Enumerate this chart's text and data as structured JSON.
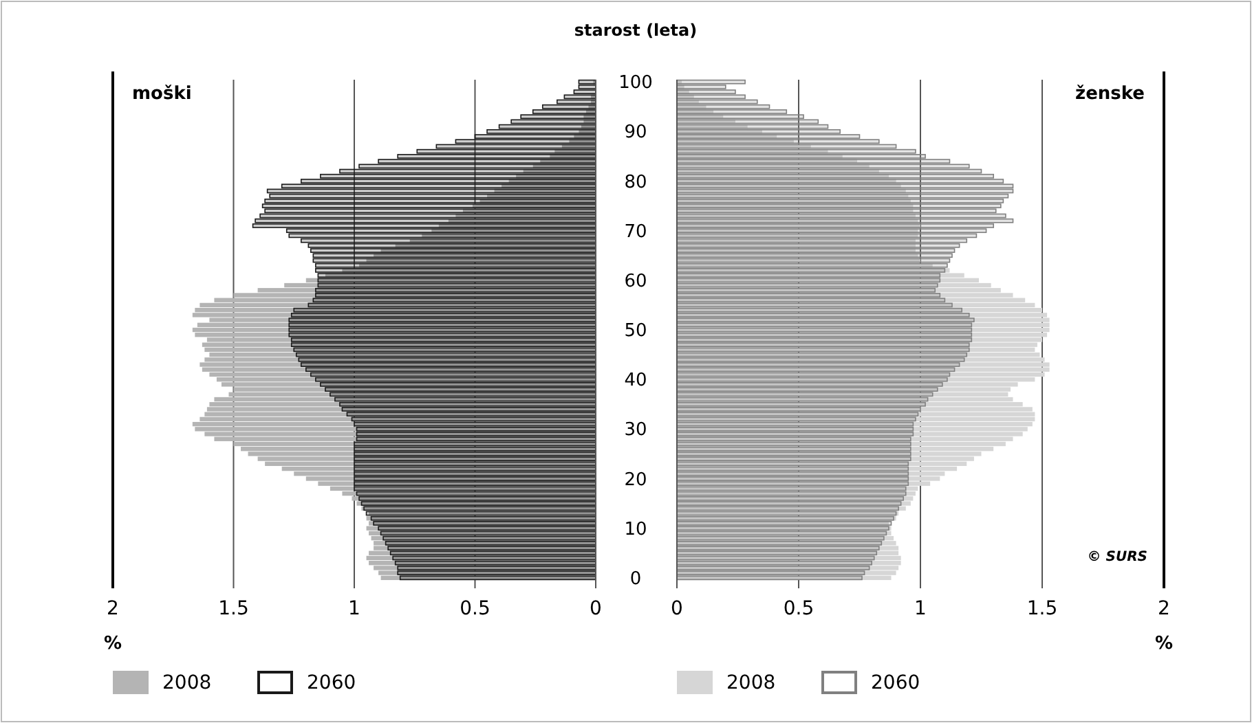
{
  "chart_data": [
    {
      "type": "bar",
      "orientation": "horizontal",
      "title": "moški",
      "ylabel": "starost (leta)",
      "xlabel": "%",
      "xlim": [
        2,
        0
      ],
      "xticks": [
        2,
        1.5,
        1,
        0.5,
        0
      ],
      "grid": "x",
      "legend": "bottom",
      "categories": [
        "100",
        null,
        null,
        null,
        null,
        null,
        null,
        null,
        null,
        null,
        "90",
        null,
        null,
        null,
        null,
        null,
        null,
        null,
        null,
        null,
        "80",
        null,
        null,
        null,
        null,
        null,
        null,
        null,
        null,
        null,
        "70",
        null,
        null,
        null,
        null,
        null,
        null,
        null,
        null,
        null,
        "60",
        null,
        null,
        null,
        null,
        null,
        null,
        null,
        null,
        null,
        "50",
        null,
        null,
        null,
        null,
        null,
        null,
        null,
        null,
        null,
        "40",
        null,
        null,
        null,
        null,
        null,
        null,
        null,
        null,
        null,
        "30",
        null,
        null,
        null,
        null,
        null,
        null,
        null,
        null,
        null,
        "20",
        null,
        null,
        null,
        null,
        null,
        null,
        null,
        null,
        null,
        "10",
        null,
        null,
        null,
        null,
        null,
        null,
        null,
        null,
        null,
        "0"
      ],
      "series": [
        {
          "name": "2008",
          "color": "#b4b4b4",
          "values": [
            0.01,
            null,
            null,
            0.02,
            0.02,
            0.03,
            0.04,
            0.05,
            0.05,
            0.06,
            0.07,
            0.09,
            0.11,
            0.14,
            0.17,
            0.19,
            0.23,
            0.26,
            0.3,
            0.33,
            0.36,
            0.39,
            0.42,
            0.45,
            0.48,
            0.51,
            0.55,
            0.58,
            0.61,
            0.65,
            0.68,
            0.72,
            0.77,
            0.83,
            0.89,
            0.92,
            0.95,
            0.98,
            1.05,
            1.12,
            1.2,
            1.29,
            1.4,
            1.5,
            1.58,
            1.64,
            1.66,
            1.67,
            1.6,
            1.65,
            1.67,
            1.66,
            1.61,
            1.63,
            1.62,
            1.6,
            1.62,
            1.64,
            1.63,
            1.6,
            1.57,
            1.55,
            1.5,
            1.52,
            1.58,
            1.6,
            1.61,
            1.62,
            1.64,
            1.67,
            1.66,
            1.62,
            1.58,
            1.5,
            1.47,
            1.44,
            1.4,
            1.37,
            1.3,
            1.25,
            1.2,
            1.15,
            1.1,
            1.05,
            1.01,
            0.99,
            0.97,
            0.94,
            0.95,
            0.94,
            0.95,
            0.94,
            0.93,
            0.92,
            0.92,
            0.94,
            0.95,
            0.94,
            0.92,
            0.9,
            0.89
          ]
        },
        {
          "name": "2060",
          "color": "#1a1a1a",
          "values": [
            0.07,
            0.07,
            0.09,
            0.13,
            0.16,
            0.22,
            0.26,
            0.31,
            0.35,
            0.4,
            0.45,
            0.5,
            0.58,
            0.66,
            0.74,
            0.82,
            0.9,
            0.98,
            1.06,
            1.14,
            1.22,
            1.3,
            1.36,
            1.35,
            1.37,
            1.38,
            1.37,
            1.39,
            1.41,
            1.42,
            1.28,
            1.27,
            1.22,
            1.19,
            1.18,
            1.17,
            1.17,
            1.16,
            1.16,
            1.15,
            1.15,
            1.15,
            1.16,
            1.16,
            1.17,
            1.19,
            1.25,
            1.26,
            1.27,
            1.27,
            1.27,
            1.27,
            1.26,
            1.26,
            1.25,
            1.24,
            1.23,
            1.22,
            1.2,
            1.18,
            1.16,
            1.14,
            1.12,
            1.1,
            1.08,
            1.06,
            1.05,
            1.03,
            1.01,
            1.0,
            0.99,
            0.99,
            0.99,
            1.0,
            1.0,
            1.0,
            1.0,
            1.0,
            1.0,
            1.0,
            1.0,
            1.0,
            1.0,
            0.99,
            0.98,
            0.97,
            0.96,
            0.95,
            0.93,
            0.92,
            0.9,
            0.89,
            0.88,
            0.87,
            0.86,
            0.85,
            0.84,
            0.83,
            0.82,
            0.82,
            0.81
          ]
        }
      ]
    },
    {
      "type": "bar",
      "orientation": "horizontal",
      "title": "ženske",
      "xlabel": "%",
      "xlim": [
        0,
        2
      ],
      "xticks": [
        0,
        0.5,
        1,
        1.5,
        2
      ],
      "grid": "x",
      "legend": "bottom",
      "tick_labels": "x",
      "annotations": [
        "© SURS"
      ],
      "categories": [
        "100",
        null,
        null,
        null,
        null,
        null,
        null,
        null,
        null,
        null,
        "90",
        null,
        null,
        null,
        null,
        null,
        null,
        null,
        null,
        null,
        "80",
        null,
        null,
        null,
        null,
        null,
        null,
        null,
        null,
        null,
        "70",
        null,
        null,
        null,
        null,
        null,
        null,
        null,
        null,
        null,
        "60",
        null,
        null,
        null,
        null,
        null,
        null,
        null,
        null,
        null,
        "50",
        null,
        null,
        null,
        null,
        null,
        null,
        null,
        null,
        null,
        "40",
        null,
        null,
        null,
        null,
        null,
        null,
        null,
        null,
        null,
        "30",
        null,
        null,
        null,
        null,
        null,
        null,
        null,
        null,
        null,
        "20",
        null,
        null,
        null,
        null,
        null,
        null,
        null,
        null,
        null,
        "10",
        null,
        null,
        null,
        null,
        null,
        null,
        null,
        null,
        null,
        "0"
      ],
      "series": [
        {
          "name": "2008",
          "color": "#d6d6d6",
          "values": [
            0.02,
            0.03,
            0.05,
            0.07,
            0.09,
            0.12,
            0.15,
            0.19,
            0.24,
            0.29,
            0.35,
            0.41,
            0.48,
            0.55,
            0.62,
            0.68,
            0.74,
            0.79,
            0.83,
            0.87,
            0.9,
            0.92,
            0.94,
            0.95,
            0.96,
            0.97,
            0.97,
            0.98,
            0.99,
            1.0,
            0.99,
            0.99,
            0.98,
            0.98,
            0.98,
            0.99,
            1.0,
            1.05,
            1.12,
            1.18,
            1.24,
            1.29,
            1.33,
            1.38,
            1.43,
            1.47,
            1.5,
            1.52,
            1.53,
            1.53,
            1.53,
            1.52,
            1.5,
            1.48,
            1.47,
            1.49,
            1.51,
            1.53,
            1.53,
            1.51,
            1.47,
            1.4,
            1.37,
            1.36,
            1.38,
            1.42,
            1.46,
            1.47,
            1.47,
            1.46,
            1.44,
            1.42,
            1.38,
            1.35,
            1.3,
            1.25,
            1.22,
            1.19,
            1.15,
            1.1,
            1.08,
            1.04,
            0.99,
            0.98,
            0.97,
            0.96,
            0.94,
            0.91,
            0.9,
            0.87,
            0.88,
            0.88,
            0.89,
            0.9,
            0.91,
            0.91,
            0.92,
            0.92,
            0.91,
            0.9,
            0.88
          ]
        },
        {
          "name": "2060",
          "color": "#808080",
          "values": [
            0.28,
            0.2,
            0.24,
            0.28,
            0.33,
            0.38,
            0.45,
            0.52,
            0.58,
            0.62,
            0.67,
            0.75,
            0.83,
            0.9,
            0.98,
            1.02,
            1.12,
            1.2,
            1.25,
            1.3,
            1.34,
            1.38,
            1.38,
            1.36,
            1.34,
            1.33,
            1.31,
            1.35,
            1.38,
            1.3,
            1.27,
            1.23,
            1.19,
            1.16,
            1.14,
            1.13,
            1.12,
            1.11,
            1.1,
            1.08,
            1.08,
            1.07,
            1.06,
            1.08,
            1.1,
            1.13,
            1.17,
            1.2,
            1.22,
            1.21,
            1.21,
            1.21,
            1.21,
            1.2,
            1.2,
            1.19,
            1.18,
            1.16,
            1.14,
            1.12,
            1.11,
            1.09,
            1.07,
            1.05,
            1.03,
            1.02,
            1.0,
            0.99,
            0.98,
            0.97,
            0.97,
            0.97,
            0.96,
            0.96,
            0.96,
            0.96,
            0.96,
            0.95,
            0.95,
            0.95,
            0.95,
            0.95,
            0.94,
            0.94,
            0.93,
            0.92,
            0.91,
            0.9,
            0.89,
            0.88,
            0.87,
            0.86,
            0.85,
            0.84,
            0.83,
            0.82,
            0.81,
            0.8,
            0.79,
            0.77,
            0.76
          ]
        }
      ]
    }
  ]
}
